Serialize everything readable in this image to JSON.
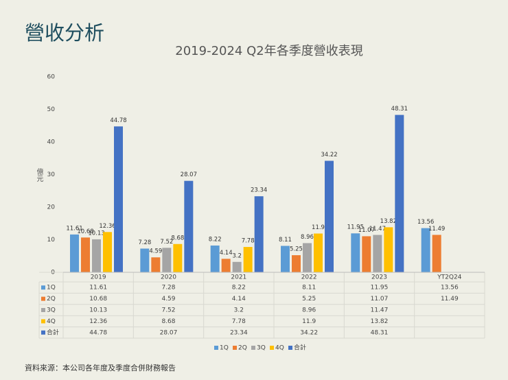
{
  "page_title": "營收分析",
  "footer": "資料來源：本公司各年度及季度合併財務報告",
  "chart_data": {
    "type": "bar",
    "title": "2019-2024 Q2年各季度營收表現",
    "y_label": "億元",
    "categories": [
      "2019",
      "2020",
      "2021",
      "2022",
      "2023",
      "YT2Q24"
    ],
    "series": [
      {
        "name": "1Q",
        "color": "#5b9bd5",
        "values": [
          11.61,
          7.28,
          8.22,
          8.11,
          11.95,
          13.56
        ]
      },
      {
        "name": "2Q",
        "color": "#ed7d31",
        "values": [
          10.68,
          4.59,
          4.14,
          5.25,
          11.07,
          11.49
        ]
      },
      {
        "name": "3Q",
        "color": "#a5a5a5",
        "values": [
          10.13,
          7.52,
          3.2,
          8.96,
          11.47,
          null
        ]
      },
      {
        "name": "4Q",
        "color": "#ffc000",
        "values": [
          12.36,
          8.68,
          7.78,
          11.9,
          13.82,
          null
        ]
      },
      {
        "name": "合計",
        "color": "#4472c4",
        "values": [
          44.78,
          28.07,
          23.34,
          34.22,
          48.31,
          null
        ]
      }
    ],
    "ylim": [
      0,
      60
    ],
    "yticks": [
      0,
      10,
      20,
      30,
      40,
      50,
      60
    ],
    "grid": false,
    "legend": "bottom"
  }
}
